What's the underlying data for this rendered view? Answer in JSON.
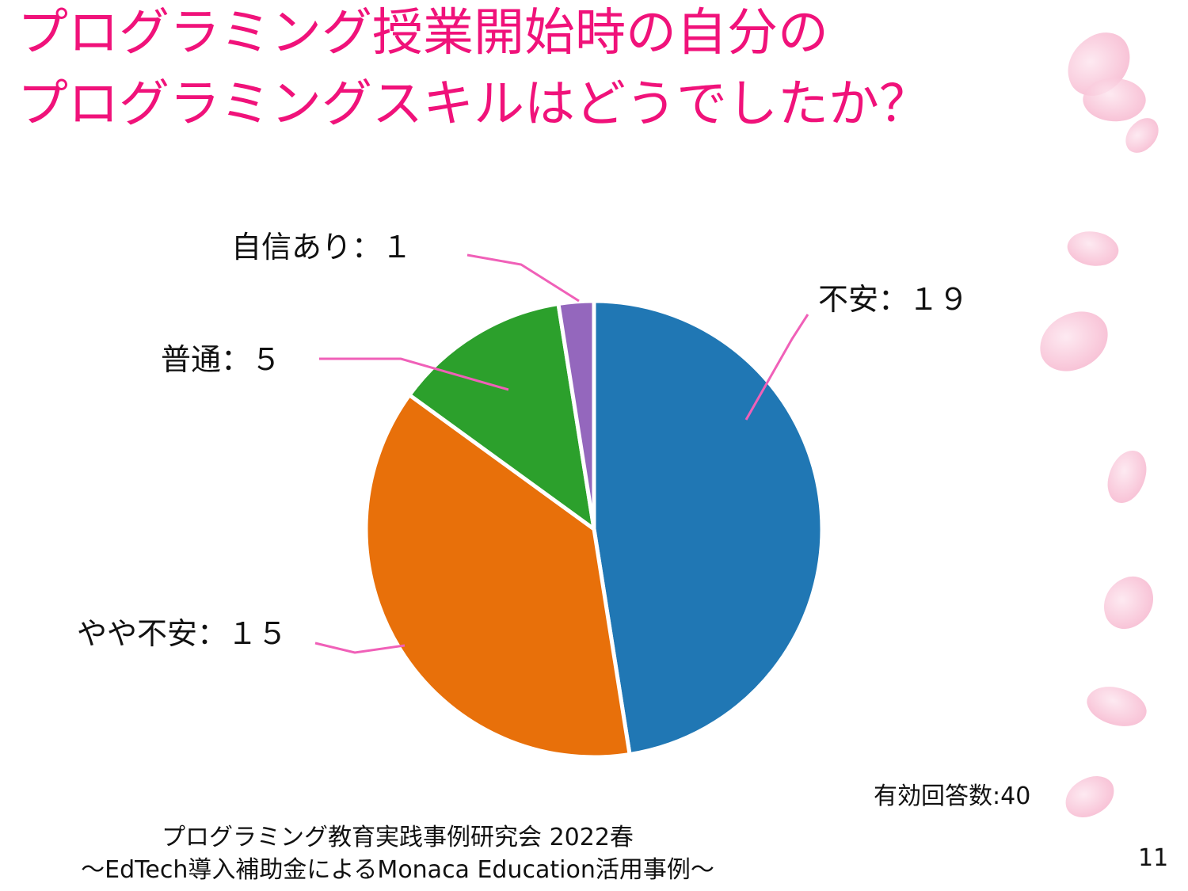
{
  "slide": {
    "title_line1": "プログラミング授業開始時の自分の",
    "title_line2": "プログラミングスキルはどうでしたか？",
    "response_count": "有効回答数:40",
    "footer_line1": "プログラミング教育実践事例研究会 2022春",
    "footer_line2": "～EdTech導入補助金によるMonaca Education活用事例～",
    "page_number": "11",
    "title_color": "#f0127a",
    "leader_color": "#f060b8"
  },
  "chart_data": {
    "type": "pie",
    "categories": [
      "不安",
      "やや不安",
      "普通",
      "自信あり"
    ],
    "values": [
      19,
      15,
      5,
      1
    ],
    "colors": [
      "#2077b4",
      "#e8700a",
      "#2ca02c",
      "#9467bd"
    ],
    "data_labels": [
      "不安：１９",
      "やや不安：１５",
      "普通：５",
      "自信あり：１"
    ],
    "start_angle": "12 o'clock",
    "direction": "clockwise",
    "legend": "none"
  }
}
